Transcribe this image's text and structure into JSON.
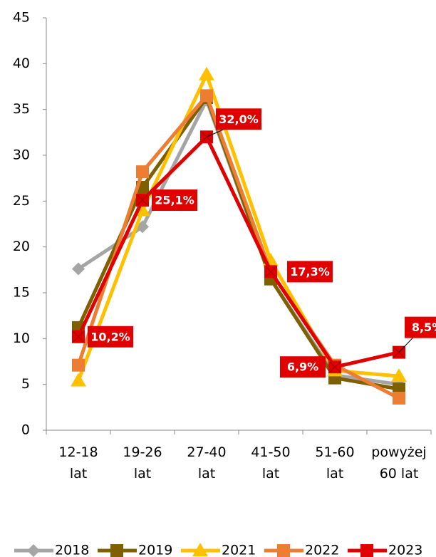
{
  "chart_data": {
    "type": "line",
    "categories": [
      "12-18 lat",
      "19-26 lat",
      "27-40 lat",
      "41-50 lat",
      "51-60 lat",
      "powyżej 60 lat"
    ],
    "series": [
      {
        "name": "2018",
        "color": "#a5a5a5",
        "marker": "diamond",
        "values": [
          17.6,
          22.2,
          36.0,
          16.5,
          6.0,
          5.0
        ]
      },
      {
        "name": "2019",
        "color": "#7f6000",
        "marker": "square",
        "values": [
          11.2,
          26.5,
          36.3,
          16.5,
          5.7,
          4.5
        ]
      },
      {
        "name": "2021",
        "color": "#ffc000",
        "marker": "triangle",
        "values": [
          5.4,
          24.0,
          38.8,
          18.5,
          6.5,
          5.9
        ]
      },
      {
        "name": "2022",
        "color": "#ed7d31",
        "marker": "square",
        "values": [
          7.1,
          28.2,
          36.5,
          17.3,
          7.1,
          3.5
        ]
      },
      {
        "name": "2023",
        "color": "#e00000",
        "marker": "square",
        "values": [
          10.2,
          25.1,
          32.0,
          17.3,
          6.9,
          8.5
        ],
        "value_labels": [
          "10,2%",
          "25,1%",
          "32,0%",
          "17,3%",
          "6,9%",
          "8,5%"
        ]
      }
    ],
    "ylim": [
      0,
      45
    ],
    "yticks": [
      0,
      5,
      10,
      15,
      20,
      25,
      30,
      35,
      40,
      45
    ],
    "grid": false,
    "legend": "bottom"
  }
}
